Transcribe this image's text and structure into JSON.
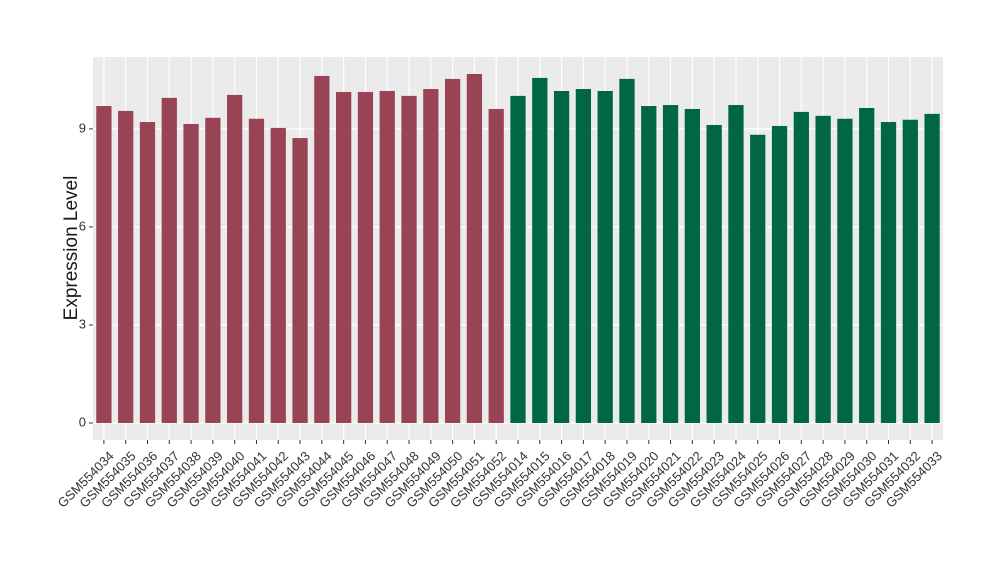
{
  "chart_data": {
    "type": "bar",
    "y_label": "Expression Level",
    "categories": [
      "GSM554034",
      "GSM554035",
      "GSM554036",
      "GSM554037",
      "GSM554038",
      "GSM554039",
      "GSM554040",
      "GSM554041",
      "GSM554042",
      "GSM554043",
      "GSM554044",
      "GSM554045",
      "GSM554046",
      "GSM554047",
      "GSM554048",
      "GSM554049",
      "GSM554050",
      "GSM554051",
      "GSM554052",
      "GSM554014",
      "GSM554015",
      "GSM554016",
      "GSM554017",
      "GSM554018",
      "GSM554019",
      "GSM554020",
      "GSM554021",
      "GSM554022",
      "GSM554023",
      "GSM554024",
      "GSM554025",
      "GSM554026",
      "GSM554027",
      "GSM554028",
      "GSM554029",
      "GSM554030",
      "GSM554031",
      "GSM554032",
      "GSM554033"
    ],
    "values": [
      9.7,
      9.55,
      9.21,
      9.95,
      9.15,
      9.34,
      10.04,
      9.31,
      9.03,
      8.72,
      10.62,
      10.13,
      10.13,
      10.16,
      10.01,
      10.22,
      10.53,
      10.68,
      9.61,
      10.01,
      10.56,
      10.16,
      10.22,
      10.16,
      10.53,
      9.7,
      9.73,
      9.61,
      9.12,
      9.73,
      8.82,
      9.09,
      9.52,
      9.4,
      9.31,
      9.64,
      9.21,
      9.28,
      9.46
    ],
    "colors": [
      "#994455",
      "#994455",
      "#994455",
      "#994455",
      "#994455",
      "#994455",
      "#994455",
      "#994455",
      "#994455",
      "#994455",
      "#994455",
      "#994455",
      "#994455",
      "#994455",
      "#994455",
      "#994455",
      "#994455",
      "#994455",
      "#994455",
      "#006644",
      "#006644",
      "#006644",
      "#006644",
      "#006644",
      "#006644",
      "#006644",
      "#006644",
      "#006644",
      "#006644",
      "#006644",
      "#006644",
      "#006644",
      "#006644",
      "#006644",
      "#006644",
      "#006644",
      "#006644",
      "#006644",
      "#006644"
    ],
    "ylim": [
      -0.52,
      11.2
    ],
    "yticks": [
      0,
      3,
      6,
      9
    ],
    "grid": true
  }
}
